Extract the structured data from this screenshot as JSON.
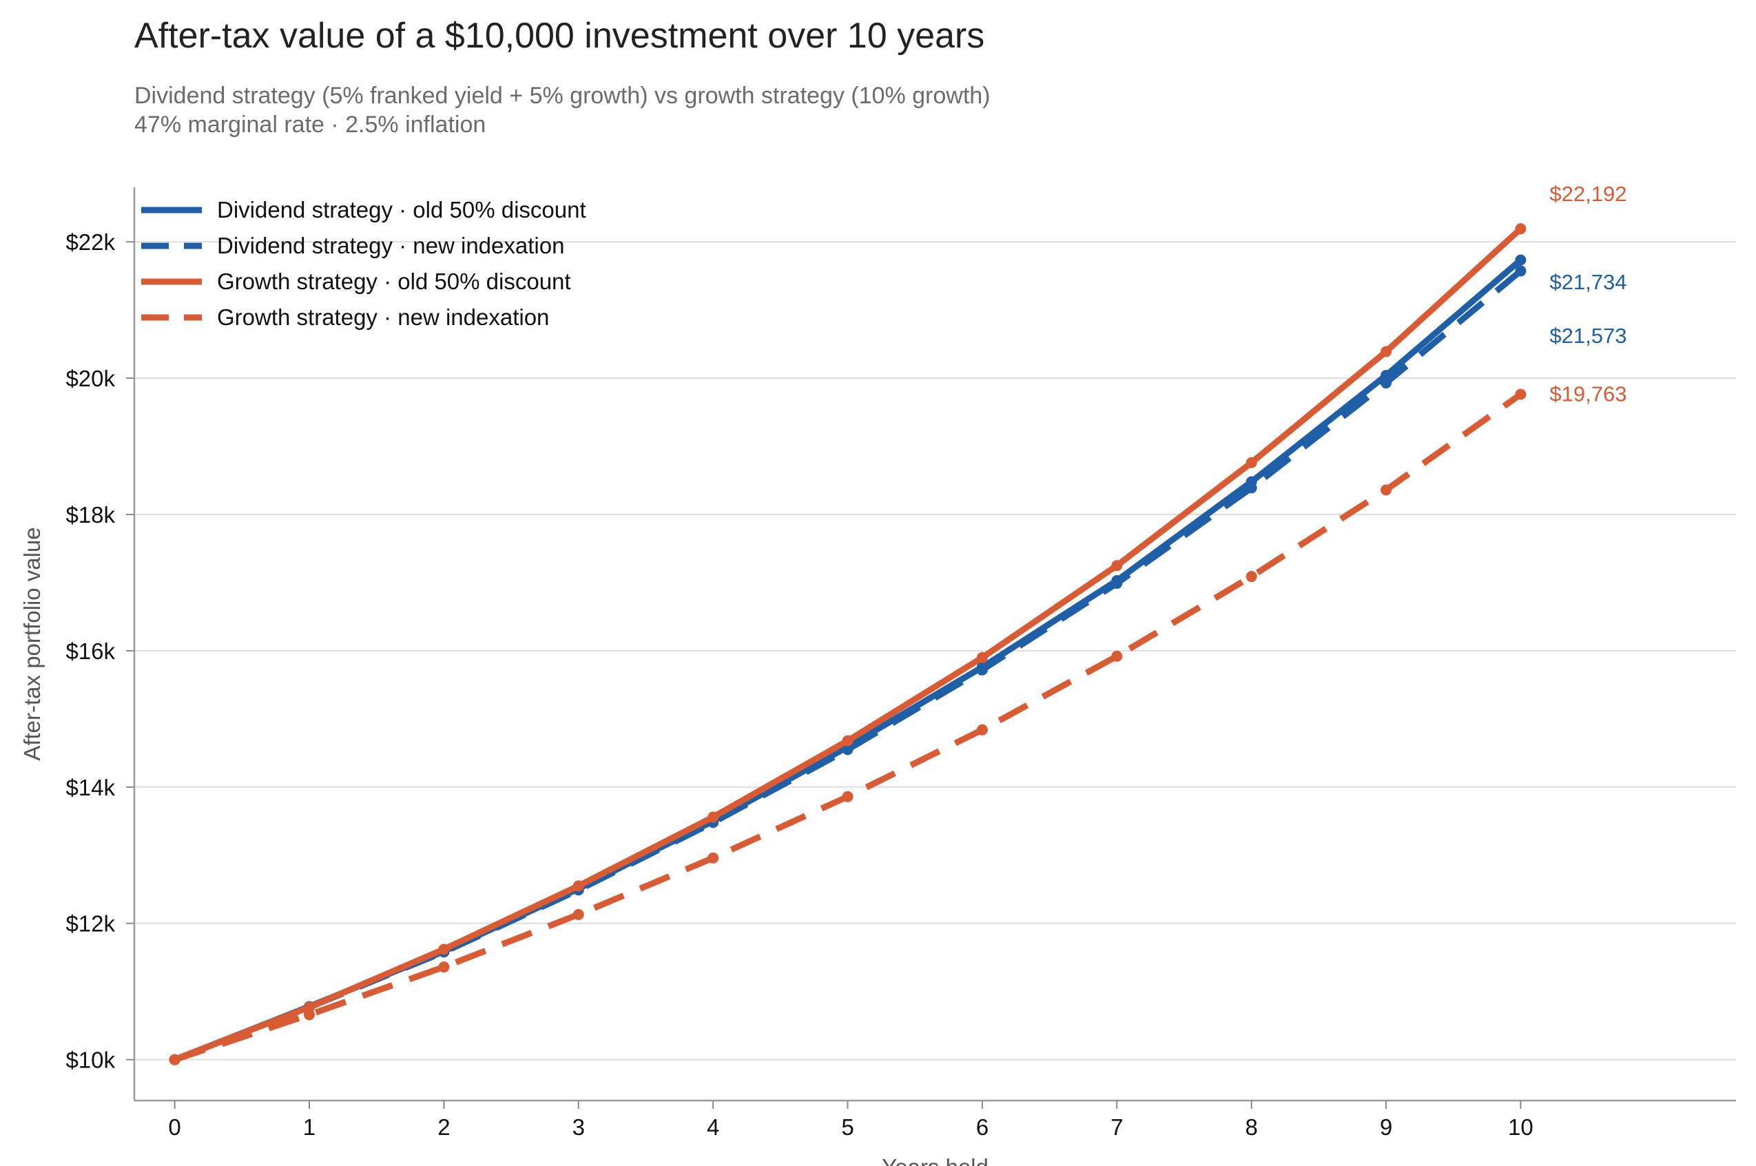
{
  "chart_data": {
    "type": "line",
    "title": "After-tax value of a $10,000 investment over 10 years",
    "subtitle": [
      "Dividend strategy (5% franked yield + 5% growth) vs growth strategy (10% growth)",
      "47% marginal rate · 2.5% inflation"
    ],
    "xlabel": "Years held",
    "ylabel": "After-tax portfolio value",
    "x": [
      0,
      1,
      2,
      3,
      4,
      5,
      6,
      7,
      8,
      9,
      10
    ],
    "xlim": [
      -0.3,
      11.6
    ],
    "ylim": [
      9400,
      22800
    ],
    "yticks": [
      10000,
      12000,
      14000,
      16000,
      18000,
      20000,
      22000
    ],
    "ytick_labels": [
      "$10k",
      "$12k",
      "$14k",
      "$16k",
      "$18k",
      "$20k",
      "$22k"
    ],
    "xtick_labels": [
      "0",
      "1",
      "2",
      "3",
      "4",
      "5",
      "6",
      "7",
      "8",
      "9",
      "10"
    ],
    "grid": "horizontal",
    "legend_position": "top-left",
    "series": [
      {
        "name": "Dividend strategy · old 50% discount",
        "color": "#1f5fa8",
        "dash": "solid",
        "values": [
          10000,
          10780,
          11590,
          12510,
          13500,
          14590,
          15760,
          17030,
          18480,
          20040,
          21734
        ],
        "end_label": "$21,734"
      },
      {
        "name": "Dividend strategy · new indexation",
        "color": "#1f5fa8",
        "dash": "dashed",
        "values": [
          10000,
          10770,
          11580,
          12490,
          13480,
          14550,
          15720,
          16990,
          18390,
          19930,
          21573
        ],
        "end_label": "$21,573"
      },
      {
        "name": "Growth strategy · old 50% discount",
        "color": "#d95b34",
        "dash": "solid",
        "values": [
          10000,
          10770,
          11620,
          12550,
          13560,
          14680,
          15900,
          17250,
          18760,
          20390,
          22192
        ],
        "end_label": "$22,192"
      },
      {
        "name": "Growth strategy · new indexation",
        "color": "#d95b34",
        "dash": "dashed",
        "values": [
          10000,
          10660,
          11360,
          12130,
          12960,
          13860,
          14840,
          15920,
          17090,
          18360,
          19763
        ],
        "end_label": "$19,763"
      }
    ]
  }
}
